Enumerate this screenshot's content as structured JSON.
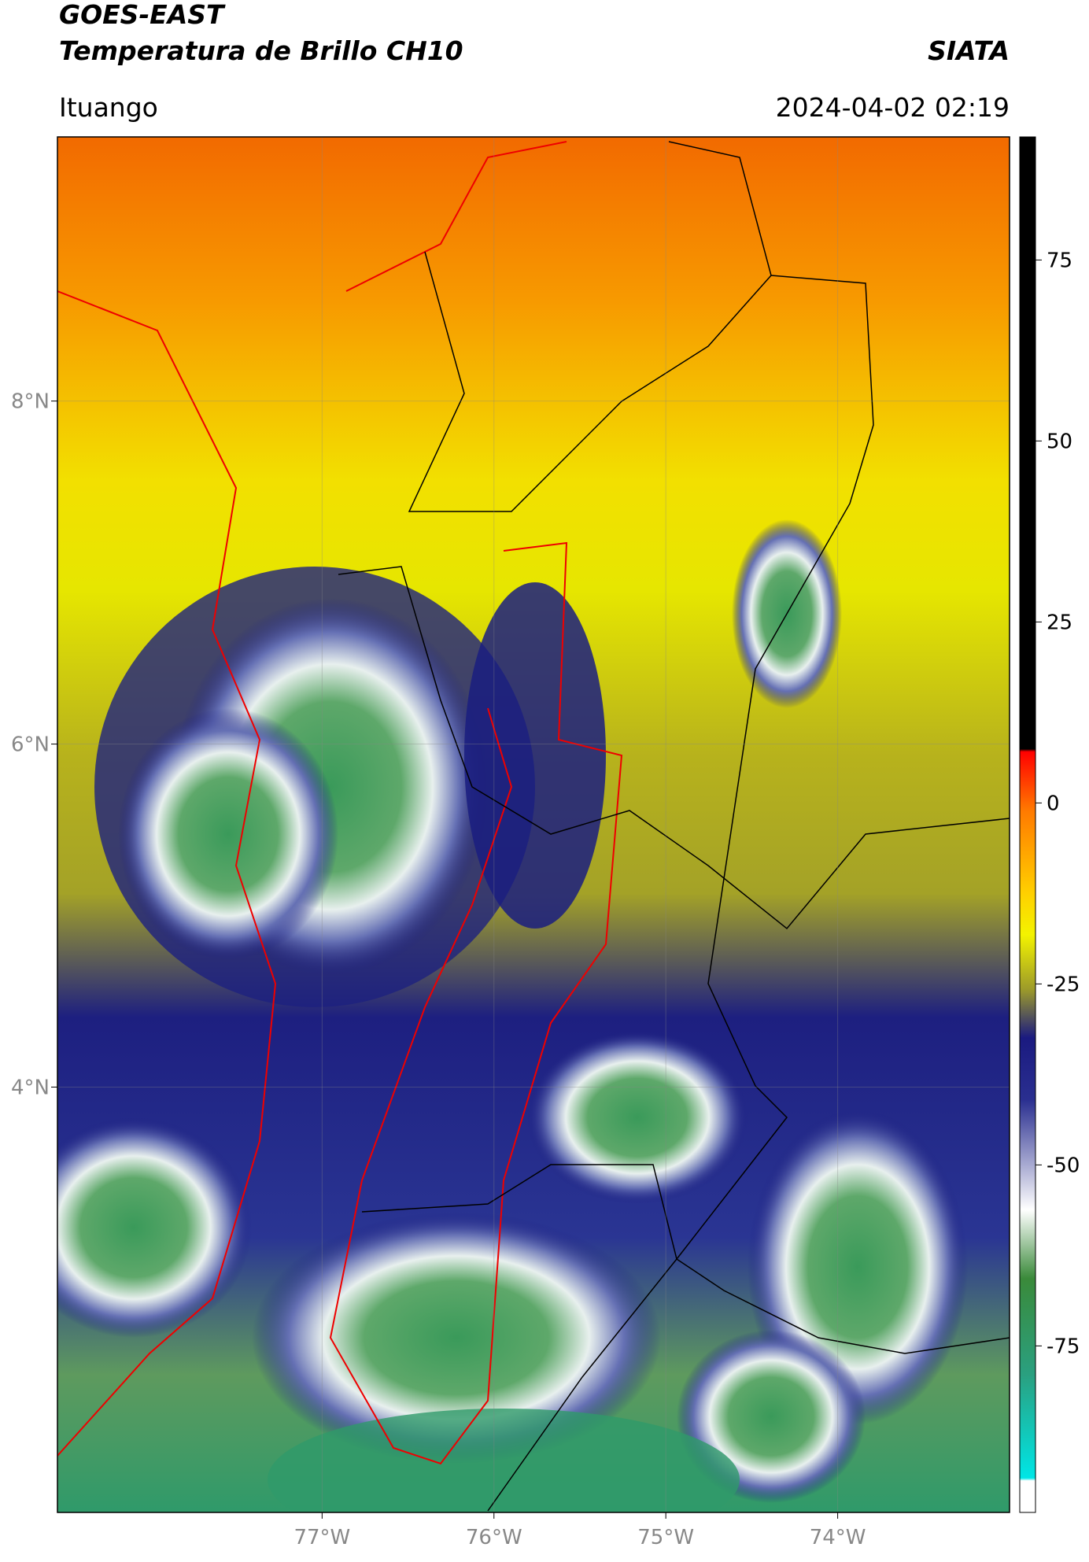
{
  "header": {
    "title": "GOES-EAST",
    "subtitle": "Temperatura de Brillo CH10",
    "brand": "SIATA",
    "location": "Ituango",
    "datetime": "2024-04-02 02:19"
  },
  "map": {
    "xlim": [
      -78.54,
      -73.0
    ],
    "ylim": [
      1.52,
      9.54
    ],
    "xticks": [
      {
        "value": -77,
        "label": "77°W"
      },
      {
        "value": -76,
        "label": "76°W"
      },
      {
        "value": -75,
        "label": "75°W"
      },
      {
        "value": -74,
        "label": "74°W"
      }
    ],
    "yticks": [
      {
        "value": 8,
        "label": "8°N"
      },
      {
        "value": 6,
        "label": "6°N"
      },
      {
        "value": 4,
        "label": "4°N"
      }
    ],
    "grid": true
  },
  "colorbar": {
    "clim": [
      -98,
      92
    ],
    "ticks": [
      75,
      50,
      25,
      0,
      -25,
      -50,
      -75
    ]
  }
}
